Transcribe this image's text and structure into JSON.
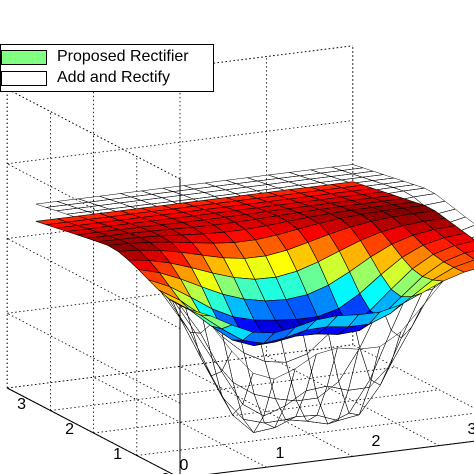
{
  "chart_data": {
    "type": "surface",
    "view": "3d",
    "grid": true,
    "legend_position": "top-left",
    "x_ticks": [
      "0",
      "1",
      "2",
      "3"
    ],
    "y_ticks": [
      "0",
      "1",
      "2",
      "3"
    ],
    "z_ticks": [],
    "x_range": [
      0,
      3.6
    ],
    "y_range": [
      0,
      3.6
    ],
    "colormap": "jet",
    "series": [
      {
        "name": "Proposed Rectifier",
        "style": "colored-surface",
        "legend_color": "#80ff80",
        "grid_size": [
          16,
          16
        ],
        "z_max": 1.0,
        "depression_depth": 0.5
      },
      {
        "name": "Add and Rectify",
        "style": "wireframe",
        "legend_color": "#ffffff",
        "grid_size": [
          16,
          16
        ],
        "z_max": 1.15,
        "depression_depth": 1.25
      }
    ]
  }
}
